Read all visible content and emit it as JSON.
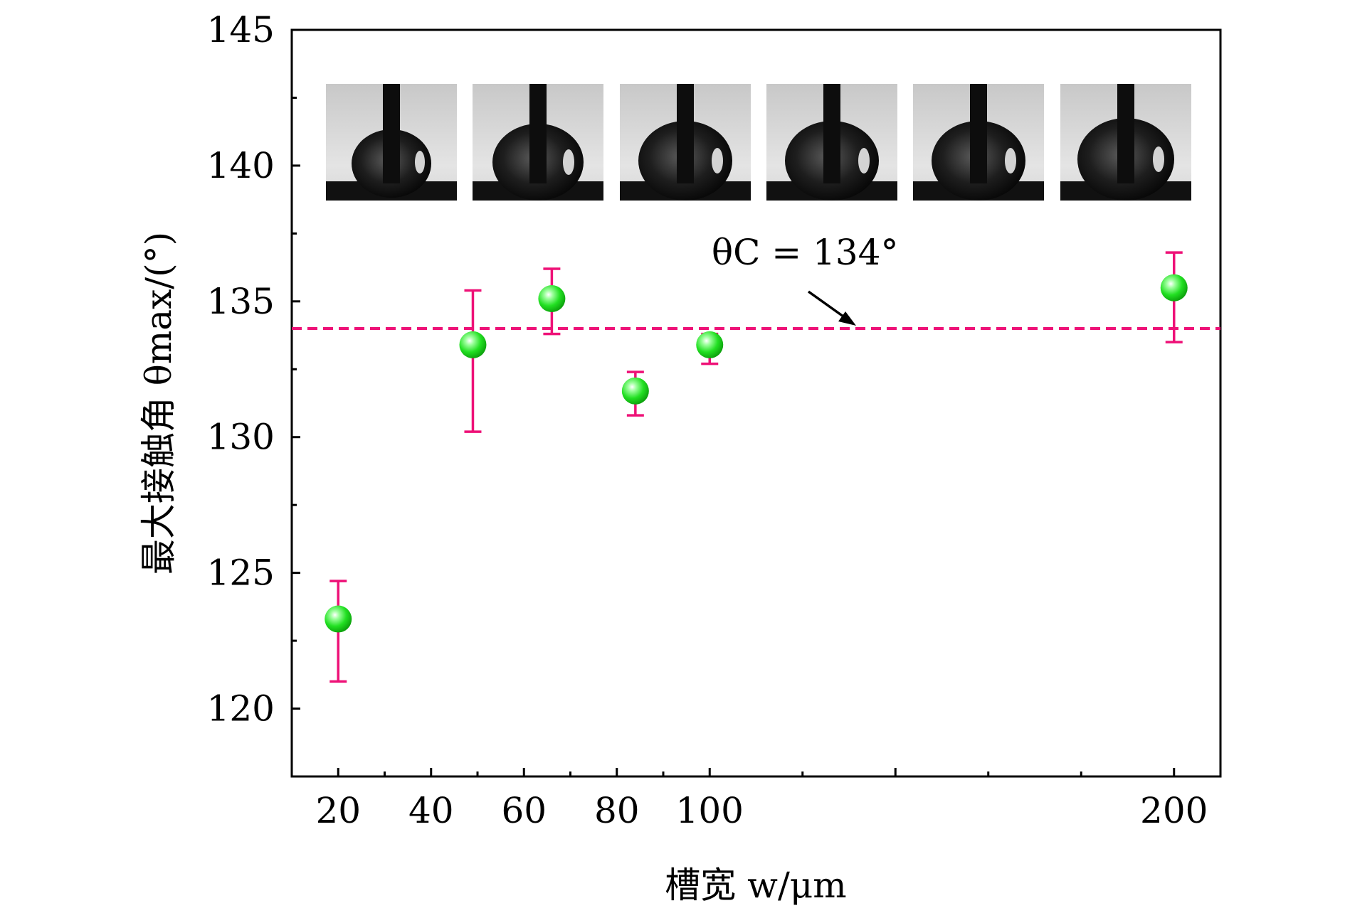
{
  "chart_data": {
    "type": "scatter",
    "xlabel": "槽宽 w/μm",
    "ylabel": "最大接触角 θmax/(°)",
    "xlim": [
      10,
      210
    ],
    "ylim": [
      117.5,
      145
    ],
    "x_ticks": [
      20,
      40,
      60,
      80,
      100,
      200
    ],
    "y_ticks": [
      120,
      125,
      130,
      135,
      140,
      145
    ],
    "series": [
      {
        "x": [
          20,
          49,
          66,
          84,
          100,
          200
        ],
        "y": [
          123.3,
          133.4,
          135.1,
          131.7,
          133.4,
          135.5
        ],
        "err_low": [
          121.0,
          130.2,
          133.8,
          130.8,
          132.7,
          133.5
        ],
        "err_high": [
          124.7,
          135.4,
          136.2,
          132.4,
          133.8,
          136.8
        ],
        "marker_color": "#22dd22",
        "errorbar_color": "#ee1177"
      }
    ],
    "reference_line": {
      "y": 134,
      "color": "#ee1177",
      "style": "dashed",
      "label": "θC = 134°"
    },
    "inset_images": 6,
    "grid": false,
    "legend": "none"
  }
}
